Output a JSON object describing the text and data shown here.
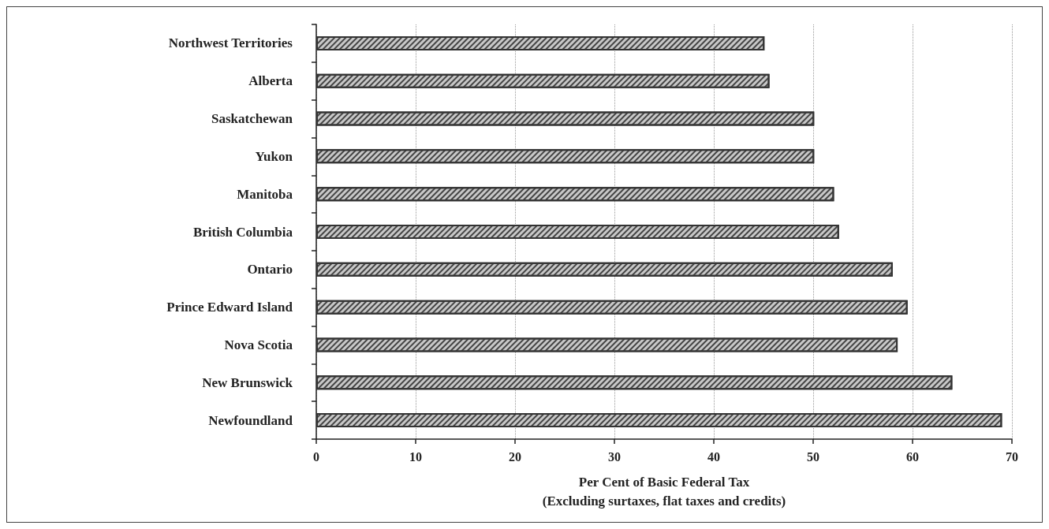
{
  "chart_data": {
    "type": "bar",
    "orientation": "horizontal",
    "xlabel": "Per Cent of Basic Federal Tax\n(Excluding surtaxes, flat taxes and credits)",
    "categories": [
      "Northwest Territories",
      "Alberta",
      "Saskatchewan",
      "Yukon",
      "Manitoba",
      "British Columbia",
      "Ontario",
      "Prince Edward Island",
      "Nova Scotia",
      "New Brunswick",
      "Newfoundland"
    ],
    "values": [
      45.1,
      45.6,
      50.1,
      50.1,
      52.1,
      52.6,
      58.0,
      59.5,
      58.5,
      64.0,
      69.0
    ],
    "color": "#c8c8c8",
    "xlim": [
      0,
      70
    ],
    "xticks": [
      0,
      10,
      20,
      30,
      40,
      50,
      60,
      70
    ],
    "grid": "x"
  }
}
